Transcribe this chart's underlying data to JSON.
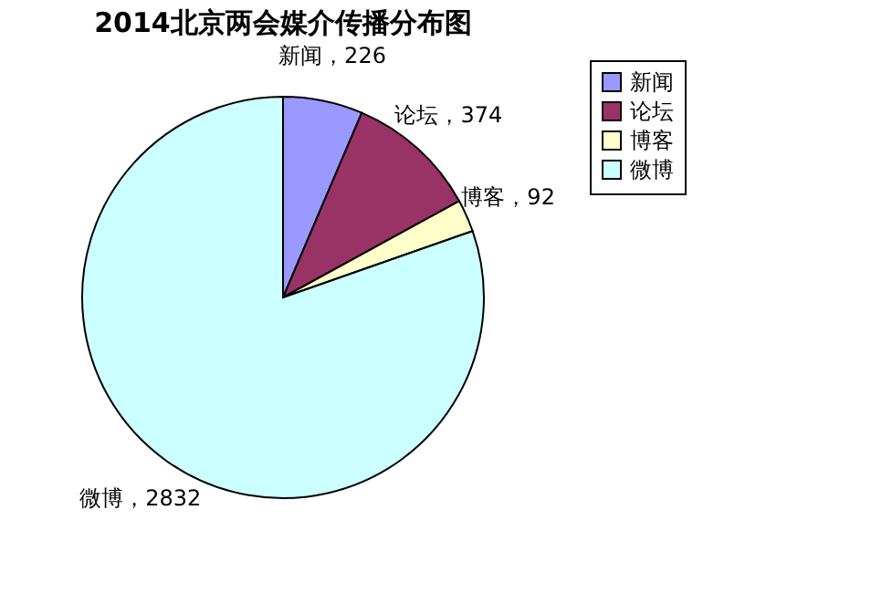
{
  "chart_data": {
    "type": "pie",
    "title": "2014北京两会媒介传播分布图",
    "categories": [
      "新闻",
      "论坛",
      "博客",
      "微博"
    ],
    "values": [
      226,
      374,
      92,
      2832
    ],
    "colors": [
      "#9999ff",
      "#993366",
      "#ffffcc",
      "#ccffff"
    ],
    "value_labels": [
      "新闻，226",
      "论坛，374",
      "博客，92",
      "微博，2832"
    ],
    "legend": "right"
  }
}
